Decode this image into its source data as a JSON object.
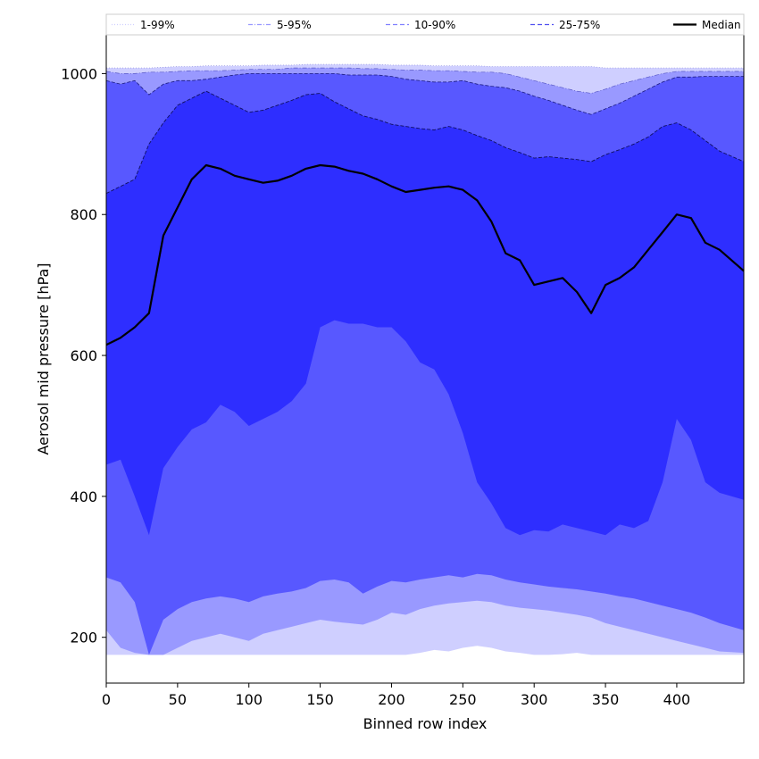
{
  "chart_data": {
    "type": "area",
    "xlabel": "Binned row index",
    "ylabel": "Aerosol mid pressure [hPa]",
    "xlim": [
      0,
      447
    ],
    "ylim": [
      135,
      1055
    ],
    "xticks": [
      0,
      50,
      100,
      150,
      200,
      250,
      300,
      350,
      400
    ],
    "yticks": [
      200,
      400,
      600,
      800,
      1000
    ],
    "grid": false,
    "legend": {
      "placement": "top",
      "entries": [
        {
          "label": "1-99%",
          "color": "#d0d0ff",
          "dash": "dotted"
        },
        {
          "label": "5-95%",
          "color": "#9898ff",
          "dash": "dashdot"
        },
        {
          "label": "10-90%",
          "color": "#8080ff",
          "dash": "dashed"
        },
        {
          "label": "25-75%",
          "color": "#5050f0",
          "dash": "dashed"
        },
        {
          "label": "Median",
          "color": "#000000",
          "dash": "solid"
        }
      ]
    },
    "colors": {
      "band_1_99": "#cfcfff",
      "band_5_95": "#9999ff",
      "band_10_90": "#5858ff",
      "band_25_75": "#2e2eff",
      "median": "#000000"
    },
    "x": [
      0,
      10,
      20,
      30,
      40,
      50,
      60,
      70,
      80,
      90,
      100,
      110,
      120,
      130,
      140,
      150,
      160,
      170,
      180,
      190,
      200,
      210,
      220,
      230,
      240,
      250,
      260,
      270,
      280,
      290,
      300,
      310,
      320,
      330,
      340,
      350,
      360,
      370,
      380,
      390,
      400,
      410,
      420,
      430,
      447
    ],
    "series": [
      {
        "label": "p1",
        "values": [
          175,
          175,
          175,
          175,
          175,
          175,
          175,
          175,
          175,
          175,
          175,
          175,
          175,
          175,
          175,
          175,
          175,
          175,
          175,
          175,
          175,
          175,
          178,
          182,
          180,
          185,
          188,
          185,
          180,
          178,
          175,
          175,
          176,
          178,
          175,
          175,
          175,
          175,
          175,
          175,
          175,
          175,
          175,
          175,
          175
        ]
      },
      {
        "label": "p5",
        "values": [
          210,
          185,
          178,
          175,
          175,
          185,
          195,
          200,
          205,
          200,
          195,
          205,
          210,
          215,
          220,
          225,
          222,
          220,
          218,
          225,
          235,
          232,
          240,
          245,
          248,
          250,
          252,
          250,
          245,
          242,
          240,
          238,
          235,
          232,
          228,
          220,
          215,
          210,
          205,
          200,
          195,
          190,
          185,
          180,
          178
        ]
      },
      {
        "label": "p10",
        "values": [
          285,
          278,
          250,
          175,
          225,
          240,
          250,
          255,
          258,
          255,
          250,
          258,
          262,
          265,
          270,
          280,
          282,
          278,
          262,
          272,
          280,
          278,
          282,
          285,
          288,
          285,
          290,
          288,
          282,
          278,
          275,
          272,
          270,
          268,
          265,
          262,
          258,
          255,
          250,
          245,
          240,
          235,
          228,
          220,
          210
        ]
      },
      {
        "label": "p25",
        "values": [
          445,
          452,
          400,
          345,
          440,
          470,
          495,
          505,
          530,
          520,
          500,
          510,
          520,
          535,
          560,
          640,
          650,
          645,
          645,
          640,
          640,
          620,
          590,
          580,
          545,
          490,
          420,
          390,
          355,
          345,
          352,
          350,
          360,
          355,
          350,
          345,
          360,
          355,
          365,
          420,
          510,
          480,
          420,
          405,
          395
        ]
      },
      {
        "label": "median",
        "values": [
          615,
          625,
          640,
          660,
          770,
          810,
          850,
          870,
          865,
          855,
          850,
          845,
          848,
          855,
          865,
          870,
          868,
          862,
          858,
          850,
          840,
          832,
          835,
          838,
          840,
          835,
          820,
          790,
          745,
          735,
          700,
          705,
          710,
          690,
          660,
          700,
          710,
          725,
          750,
          775,
          800,
          795,
          760,
          750,
          720
        ]
      },
      {
        "label": "p75",
        "values": [
          830,
          840,
          850,
          900,
          930,
          955,
          965,
          975,
          965,
          955,
          945,
          948,
          955,
          962,
          970,
          972,
          960,
          950,
          940,
          935,
          928,
          925,
          922,
          920,
          925,
          920,
          912,
          905,
          895,
          888,
          880,
          882,
          880,
          878,
          875,
          885,
          892,
          900,
          910,
          925,
          930,
          920,
          905,
          890,
          875
        ]
      },
      {
        "label": "p90",
        "values": [
          990,
          985,
          990,
          970,
          985,
          990,
          990,
          992,
          995,
          998,
          1000,
          1000,
          1000,
          1000,
          1000,
          1000,
          1000,
          998,
          998,
          998,
          996,
          992,
          990,
          988,
          988,
          990,
          985,
          982,
          980,
          975,
          968,
          962,
          955,
          948,
          942,
          950,
          958,
          968,
          978,
          988,
          995,
          995,
          996,
          996,
          996
        ]
      },
      {
        "label": "p95",
        "values": [
          1003,
          1000,
          1000,
          1002,
          1002,
          1003,
          1004,
          1004,
          1004,
          1005,
          1006,
          1006,
          1006,
          1008,
          1008,
          1008,
          1008,
          1008,
          1007,
          1007,
          1006,
          1005,
          1005,
          1004,
          1004,
          1003,
          1002,
          1002,
          1000,
          995,
          990,
          985,
          980,
          975,
          972,
          978,
          985,
          990,
          995,
          1000,
          1003,
          1003,
          1003,
          1003,
          1003
        ]
      },
      {
        "label": "p99",
        "values": [
          1008,
          1008,
          1008,
          1008,
          1009,
          1010,
          1010,
          1011,
          1011,
          1011,
          1011,
          1012,
          1012,
          1012,
          1013,
          1013,
          1013,
          1013,
          1013,
          1013,
          1012,
          1012,
          1012,
          1011,
          1011,
          1011,
          1011,
          1010,
          1010,
          1010,
          1010,
          1010,
          1010,
          1010,
          1010,
          1008,
          1008,
          1008,
          1008,
          1008,
          1008,
          1008,
          1008,
          1008,
          1008
        ]
      }
    ]
  }
}
